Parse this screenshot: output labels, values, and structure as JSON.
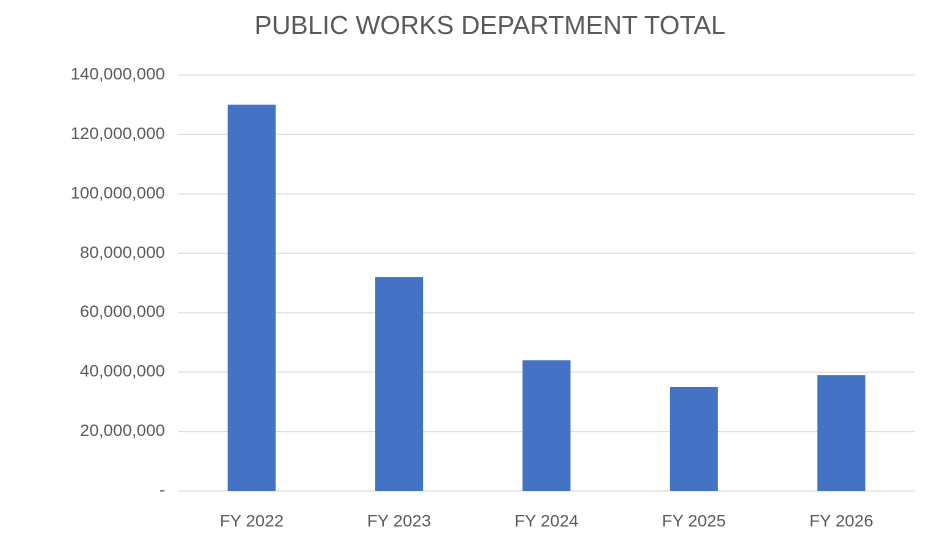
{
  "chart_data": {
    "type": "bar",
    "title": "PUBLIC WORKS DEPARTMENT TOTAL",
    "categories": [
      "FY 2022",
      "FY 2023",
      "FY 2024",
      "FY 2025",
      "FY 2026"
    ],
    "values": [
      130000000,
      72000000,
      44000000,
      35000000,
      39000000
    ],
    "color": "#4472c4",
    "ylim": [
      0,
      140000000
    ],
    "yticks": [
      {
        "value": 0,
        "label": "-"
      },
      {
        "value": 20000000,
        "label": "20,000,000"
      },
      {
        "value": 40000000,
        "label": "40,000,000"
      },
      {
        "value": 60000000,
        "label": "60,000,000"
      },
      {
        "value": 80000000,
        "label": "80,000,000"
      },
      {
        "value": 100000000,
        "label": "100,000,000"
      },
      {
        "value": 120000000,
        "label": "120,000,000"
      },
      {
        "value": 140000000,
        "label": "140,000,000"
      }
    ],
    "grid": true
  }
}
